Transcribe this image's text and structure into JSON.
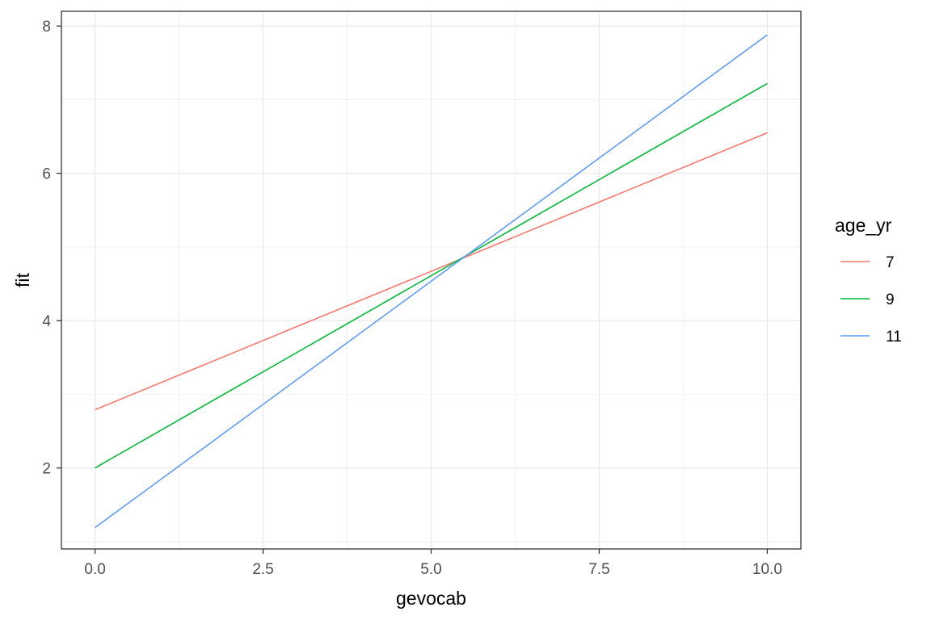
{
  "chart_data": {
    "type": "line",
    "xlabel": "gevocab",
    "ylabel": "fit",
    "xlim": [
      -0.5,
      10.5
    ],
    "ylim": [
      0.9,
      8.2
    ],
    "x_ticks": [
      "0.0",
      "2.5",
      "5.0",
      "7.5",
      "10.0"
    ],
    "x_tick_values": [
      0,
      2.5,
      5,
      7.5,
      10
    ],
    "y_ticks": [
      "2",
      "4",
      "6",
      "8"
    ],
    "y_tick_values": [
      2,
      4,
      6,
      8
    ],
    "grid": true,
    "legend": {
      "title": "age_yr",
      "position": "right"
    },
    "series": [
      {
        "name": "7",
        "color": "#F8766D",
        "x": [
          0,
          10
        ],
        "y": [
          2.79,
          6.55
        ]
      },
      {
        "name": "9",
        "color": "#00BA38",
        "x": [
          0,
          10
        ],
        "y": [
          2.0,
          7.22
        ]
      },
      {
        "name": "11",
        "color": "#619CFF",
        "x": [
          0,
          10
        ],
        "y": [
          1.19,
          7.88
        ]
      }
    ]
  }
}
